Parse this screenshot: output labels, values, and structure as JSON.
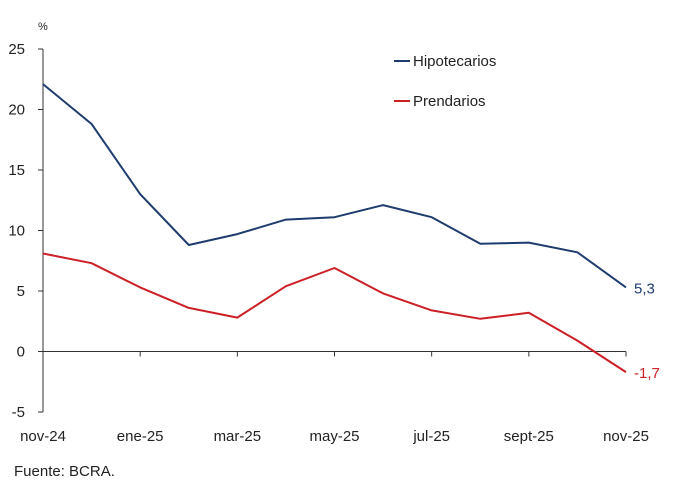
{
  "chart_data": {
    "type": "line",
    "unit": "%",
    "x": [
      "nov-24",
      "dic-24",
      "ene-25",
      "feb-25",
      "mar-25",
      "abr-25",
      "may-25",
      "jun-25",
      "jul-25",
      "ago-25",
      "sept-25",
      "oct-25",
      "nov-25"
    ],
    "x_tick_labels": [
      "nov-24",
      "ene-25",
      "mar-25",
      "may-25",
      "jul-25",
      "sept-25",
      "nov-25"
    ],
    "ylim": [
      -5,
      25
    ],
    "y_ticks": [
      -5,
      0,
      5,
      10,
      15,
      20,
      25
    ],
    "grid": false,
    "legend": "top-center",
    "series": [
      {
        "name": "Hipotecarios",
        "color": "#1f3c6e",
        "values": [
          22.1,
          18.8,
          13.0,
          8.8,
          9.7,
          10.9,
          11.1,
          12.1,
          11.1,
          8.9,
          9.0,
          8.2,
          5.3
        ],
        "end_label": "5,3"
      },
      {
        "name": "Prendarios",
        "color": "#cc1f26",
        "values": [
          8.1,
          7.3,
          5.3,
          3.6,
          2.8,
          5.4,
          6.9,
          4.8,
          3.4,
          2.7,
          3.2,
          0.9,
          -1.7
        ],
        "end_label": "-1,7"
      }
    ]
  },
  "source": "Fuente: BCRA."
}
